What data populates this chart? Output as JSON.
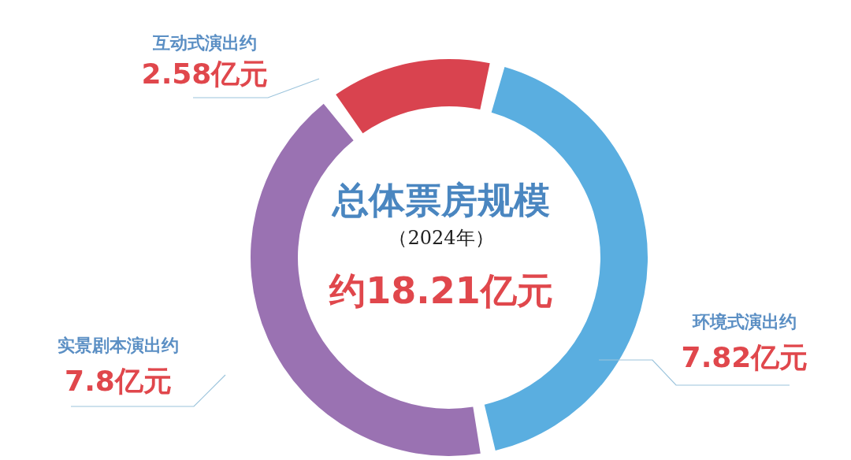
{
  "chart_data": {
    "type": "donut",
    "title": "总体票房规模",
    "subtitle": "（2024年）",
    "annotations": [
      "约18.21亿元"
    ],
    "categories": [
      "互动式演出约",
      "环境式演出约",
      "实景剧本演出约"
    ],
    "values": [
      2.58,
      7.82,
      7.8
    ],
    "value_labels": [
      "2.58亿元",
      "7.82亿元",
      "7.8亿元"
    ],
    "colors": [
      "#d9434f",
      "#5aaee0",
      "#9a72b2"
    ]
  }
}
